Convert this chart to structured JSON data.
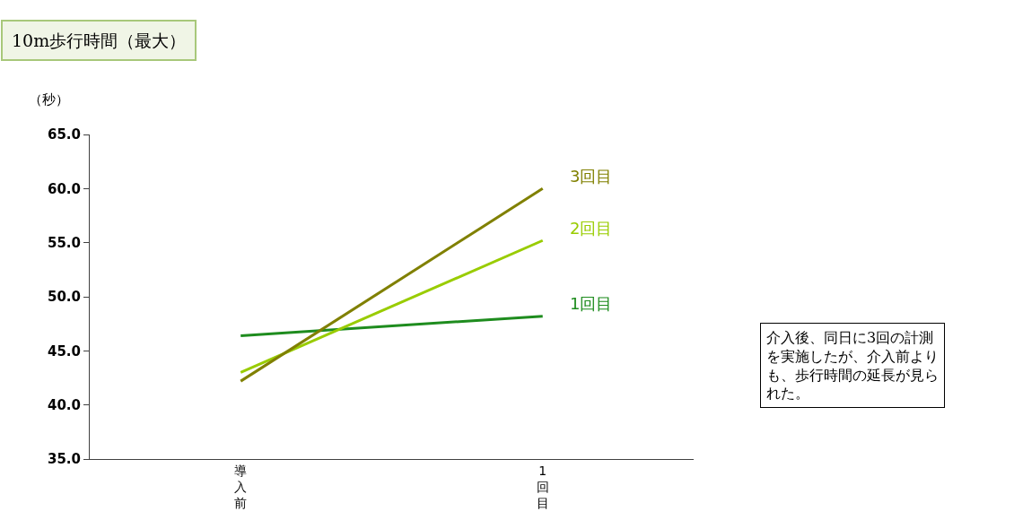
{
  "chart_data": {
    "type": "line",
    "title": "10m歩行時間（最大）",
    "ylabel": "（秒）",
    "categories": [
      "導入前",
      "1回目"
    ],
    "series": [
      {
        "name": "1回目",
        "color": "#1e8c1e",
        "values": [
          46.4,
          48.2
        ]
      },
      {
        "name": "2回目",
        "color": "#99cc00",
        "values": [
          43.0,
          55.2
        ]
      },
      {
        "name": "3回目",
        "color": "#808000",
        "values": [
          42.2,
          60.0
        ]
      }
    ],
    "ylim": [
      35,
      65
    ],
    "yticks": [
      {
        "value": 35,
        "label": "35.0"
      },
      {
        "value": 40,
        "label": "40.0"
      },
      {
        "value": 45,
        "label": "45.0"
      },
      {
        "value": 50,
        "label": "50.0"
      },
      {
        "value": 55,
        "label": "55.0"
      },
      {
        "value": 60,
        "label": "60.0"
      },
      {
        "value": 65,
        "label": "65.0"
      }
    ],
    "legend": false,
    "marker": "none",
    "line_style": "solid",
    "annotations": [
      "介入後、同日に3回の計測を実施したが、介入前よりも、歩行時間の延長が見られた。"
    ]
  }
}
